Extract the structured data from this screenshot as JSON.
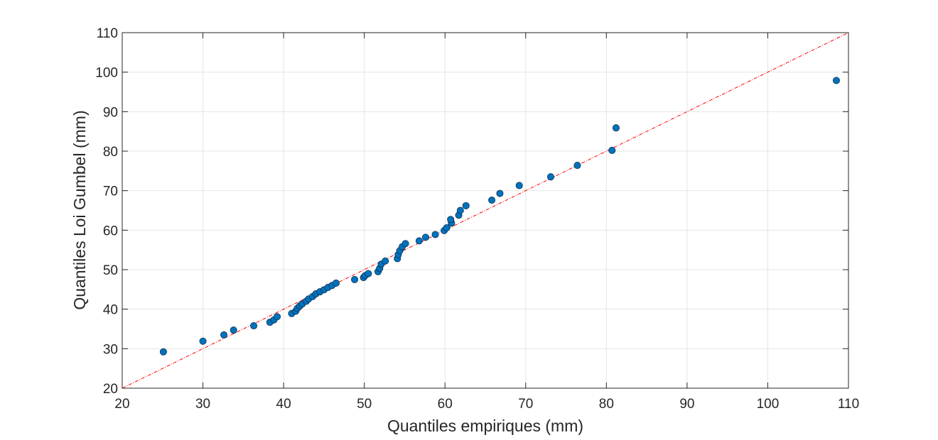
{
  "chart_data": {
    "type": "scatter",
    "title": "",
    "xlabel": "Quantiles empiriques (mm)",
    "ylabel": "Quantiles Loi Gumbel (mm)",
    "xlim": [
      20,
      110
    ],
    "ylim": [
      20,
      110
    ],
    "xticks": [
      20,
      30,
      40,
      50,
      60,
      70,
      80,
      90,
      100,
      110
    ],
    "yticks": [
      20,
      30,
      40,
      50,
      60,
      70,
      80,
      90,
      100,
      110
    ],
    "xtick_labels": [
      "20",
      "30",
      "40",
      "50",
      "60",
      "70",
      "80",
      "90",
      "100",
      "110"
    ],
    "ytick_labels": [
      "20",
      "30",
      "40",
      "50",
      "60",
      "70",
      "80",
      "90",
      "100",
      "110"
    ],
    "grid": true,
    "reference_line": {
      "name": "y = x",
      "color": "#ff0000",
      "style": "dash-dot",
      "from": [
        20,
        20
      ],
      "to": [
        110,
        110
      ]
    },
    "series": [
      {
        "name": "Quantiles",
        "color": "#0072bd",
        "x": [
          25.1,
          30.0,
          32.6,
          33.8,
          36.3,
          38.3,
          38.8,
          39.2,
          41.0,
          41.5,
          41.7,
          42.0,
          42.3,
          42.8,
          43.1,
          43.6,
          44.0,
          44.5,
          45.0,
          45.5,
          46.0,
          46.5,
          48.8,
          49.9,
          50.1,
          50.5,
          51.7,
          51.9,
          52.1,
          52.6,
          54.1,
          54.2,
          54.4,
          54.7,
          55.1,
          56.8,
          57.6,
          58.8,
          59.9,
          60.2,
          60.8,
          60.7,
          61.7,
          61.9,
          62.6,
          65.8,
          66.8,
          69.2,
          73.1,
          76.4,
          80.7,
          81.2,
          108.5
        ],
        "y": [
          29.2,
          31.9,
          33.5,
          34.7,
          35.8,
          36.7,
          37.3,
          38.1,
          38.9,
          39.5,
          40.2,
          40.8,
          41.3,
          42.0,
          42.6,
          43.2,
          43.9,
          44.4,
          44.9,
          45.5,
          46.0,
          46.6,
          47.5,
          48.0,
          48.5,
          49.0,
          49.5,
          50.3,
          51.4,
          52.2,
          52.8,
          53.8,
          54.8,
          55.8,
          56.6,
          57.3,
          58.2,
          58.9,
          59.9,
          60.6,
          61.8,
          62.7,
          63.8,
          65.0,
          66.2,
          67.6,
          69.3,
          71.3,
          73.5,
          76.4,
          80.2,
          85.9,
          97.9
        ]
      }
    ]
  }
}
